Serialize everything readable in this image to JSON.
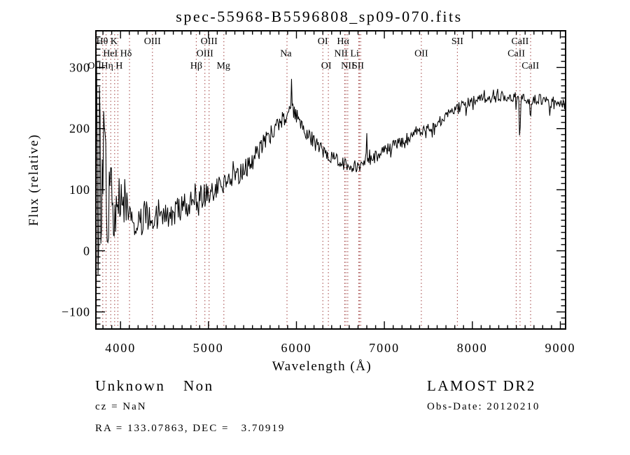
{
  "title": "spec-55968-B5596808_sp09-070.fits",
  "annotations": {
    "class_label": "Unknown",
    "subclass_label": "Non",
    "cz": "cz = NaN",
    "radec": "RA = 133.07863, DEC =   3.70919",
    "survey": "LAMOST DR2",
    "obs_date": "Obs-Date: 20120210"
  },
  "chart_data": {
    "type": "line",
    "title": "spec-55968-B5596808_sp09-070.fits",
    "xlabel": "Wavelength (Å)",
    "ylabel": "Flux (relative)",
    "xlim": [
      3720,
      9060
    ],
    "ylim": [
      -128,
      360
    ],
    "grid": false,
    "legend": null,
    "x_ticks": [
      {
        "label": "4000",
        "value": 4000
      },
      {
        "label": "5000",
        "value": 5000
      },
      {
        "label": "6000",
        "value": 6000
      },
      {
        "label": "7000",
        "value": 7000
      },
      {
        "label": "8000",
        "value": 8000
      },
      {
        "label": "9000",
        "value": 9000
      }
    ],
    "y_ticks": [
      {
        "label": "−100",
        "value": -100
      },
      {
        "label": "0",
        "value": 0
      },
      {
        "label": "100",
        "value": 100
      },
      {
        "label": "200",
        "value": 200
      },
      {
        "label": "300",
        "value": 300
      }
    ],
    "x_minor_step": 100,
    "y_minor_step": 10,
    "line_color": "#000000",
    "marker_line_color": "#993333",
    "spectral_lines": [
      {
        "name": "OII",
        "wl": 3727
      },
      {
        "name": "Hθ",
        "wl": 3798
      },
      {
        "name": "Hη",
        "wl": 3835
      },
      {
        "name": "HeI",
        "wl": 3889
      },
      {
        "name": "K",
        "wl": 3933
      },
      {
        "name": "H",
        "wl": 3970
      },
      {
        "name": "Hδ",
        "wl": 4102
      },
      {
        "name": "OIII",
        "wl": 4363
      },
      {
        "name": "Hβ",
        "wl": 4861
      },
      {
        "name": "OIII",
        "wl": 4959
      },
      {
        "name": "OIII",
        "wl": 5007
      },
      {
        "name": "Mg",
        "wl": 5175
      },
      {
        "name": "Na",
        "wl": 5893
      },
      {
        "name": "OI",
        "wl": 6300
      },
      {
        "name": "OI",
        "wl": 6363
      },
      {
        "name": "NII",
        "wl": 6548
      },
      {
        "name": "Hα",
        "wl": 6563
      },
      {
        "name": "NII",
        "wl": 6583
      },
      {
        "name": "Li",
        "wl": 6708
      },
      {
        "name": "SII",
        "wl": 6716
      },
      {
        "name": "SII",
        "wl": 6731
      },
      {
        "name": "OII",
        "wl": 7420
      },
      {
        "name": "SII",
        "wl": 7830
      },
      {
        "name": "CaII",
        "wl": 8498
      },
      {
        "name": "CaII",
        "wl": 8542
      },
      {
        "name": "CaII",
        "wl": 8662
      }
    ],
    "line_labels": [
      {
        "text": "Hθ K",
        "wl": 3845,
        "row": 1
      },
      {
        "text": "OIII",
        "wl": 4363,
        "row": 1
      },
      {
        "text": "OIII",
        "wl": 5007,
        "row": 1
      },
      {
        "text": "OI",
        "wl": 6300,
        "row": 1
      },
      {
        "text": "Hα",
        "wl": 6530,
        "row": 1
      },
      {
        "text": "SII",
        "wl": 7830,
        "row": 1
      },
      {
        "text": "CaII",
        "wl": 8542,
        "row": 1
      },
      {
        "text": "HeI Hδ",
        "wl": 3965,
        "row": 2
      },
      {
        "text": "OIII",
        "wl": 4959,
        "row": 2
      },
      {
        "text": "Na",
        "wl": 5880,
        "row": 2
      },
      {
        "text": "NII Li",
        "wl": 6570,
        "row": 2
      },
      {
        "text": "OII",
        "wl": 7420,
        "row": 2
      },
      {
        "text": "CaII",
        "wl": 8500,
        "row": 2
      },
      {
        "text": "OII",
        "wl": 3705,
        "row": 3
      },
      {
        "text": "Hη",
        "wl": 3848,
        "row": 3
      },
      {
        "text": "H",
        "wl": 3985,
        "row": 3
      },
      {
        "text": "Hβ",
        "wl": 4861,
        "row": 3
      },
      {
        "text": "Mg",
        "wl": 5170,
        "row": 3
      },
      {
        "text": "OI",
        "wl": 6340,
        "row": 3
      },
      {
        "text": "NII",
        "wl": 6583,
        "row": 3
      },
      {
        "text": "SII",
        "wl": 6700,
        "row": 3
      },
      {
        "text": "CaII",
        "wl": 8660,
        "row": 3
      }
    ],
    "continuum": [
      [
        3720,
        140
      ],
      [
        3760,
        128
      ],
      [
        3800,
        114
      ],
      [
        3850,
        100
      ],
      [
        3900,
        88
      ],
      [
        3960,
        78
      ],
      [
        4050,
        66
      ],
      [
        4150,
        58
      ],
      [
        4250,
        54
      ],
      [
        4400,
        53
      ],
      [
        4550,
        60
      ],
      [
        4700,
        70
      ],
      [
        4850,
        82
      ],
      [
        5000,
        95
      ],
      [
        5150,
        106
      ],
      [
        5300,
        120
      ],
      [
        5400,
        130
      ],
      [
        5500,
        148
      ],
      [
        5600,
        172
      ],
      [
        5700,
        190
      ],
      [
        5800,
        208
      ],
      [
        5880,
        222
      ],
      [
        5950,
        229
      ],
      [
        6020,
        218
      ],
      [
        6100,
        198
      ],
      [
        6200,
        178
      ],
      [
        6300,
        163
      ],
      [
        6400,
        152
      ],
      [
        6500,
        144
      ],
      [
        6600,
        139
      ],
      [
        6700,
        139
      ],
      [
        6800,
        147
      ],
      [
        6900,
        154
      ],
      [
        7000,
        163
      ],
      [
        7150,
        176
      ],
      [
        7300,
        188
      ],
      [
        7450,
        198
      ],
      [
        7600,
        209
      ],
      [
        7750,
        226
      ],
      [
        7900,
        241
      ],
      [
        8050,
        247
      ],
      [
        8200,
        250
      ],
      [
        8350,
        251
      ],
      [
        8500,
        250
      ],
      [
        8650,
        248
      ],
      [
        8800,
        247
      ],
      [
        8950,
        244
      ],
      [
        9060,
        239
      ]
    ],
    "noise_envelope": [
      [
        3720,
        190
      ],
      [
        3760,
        155
      ],
      [
        3800,
        115
      ],
      [
        3850,
        88
      ],
      [
        3900,
        72
      ],
      [
        3960,
        56
      ],
      [
        4050,
        42
      ],
      [
        4150,
        32
      ],
      [
        4300,
        27
      ],
      [
        4500,
        24
      ],
      [
        4700,
        22
      ],
      [
        5000,
        19
      ],
      [
        5300,
        17
      ],
      [
        5600,
        15
      ],
      [
        5900,
        14
      ],
      [
        6200,
        12
      ],
      [
        6500,
        11
      ],
      [
        6800,
        10
      ],
      [
        7200,
        9
      ],
      [
        7600,
        9
      ],
      [
        8000,
        8
      ],
      [
        8400,
        8
      ],
      [
        8800,
        9
      ],
      [
        9060,
        9
      ]
    ],
    "features": [
      {
        "wl": 3730,
        "amp": 150,
        "sigma": 3
      },
      {
        "wl": 3745,
        "amp": -200,
        "sigma": 2.5
      },
      {
        "wl": 3762,
        "amp": 165,
        "sigma": 2.5
      },
      {
        "wl": 3788,
        "amp": -150,
        "sigma": 2.5
      },
      {
        "wl": 3805,
        "amp": 120,
        "sigma": 2.5
      },
      {
        "wl": 5944,
        "amp": 42,
        "sigma": 4
      },
      {
        "wl": 6800,
        "amp": 46,
        "sigma": 4
      },
      {
        "wl": 7540,
        "amp": -16,
        "sigma": 7
      },
      {
        "wl": 7930,
        "amp": -20,
        "sigma": 4
      },
      {
        "wl": 8498,
        "amp": -30,
        "sigma": 4
      },
      {
        "wl": 8540,
        "amp": -75,
        "sigma": 5
      },
      {
        "wl": 8662,
        "amp": -38,
        "sigma": 4
      },
      {
        "wl": 8880,
        "amp": -22,
        "sigma": 10
      }
    ],
    "sample_step": 8,
    "seed": 20120210
  }
}
